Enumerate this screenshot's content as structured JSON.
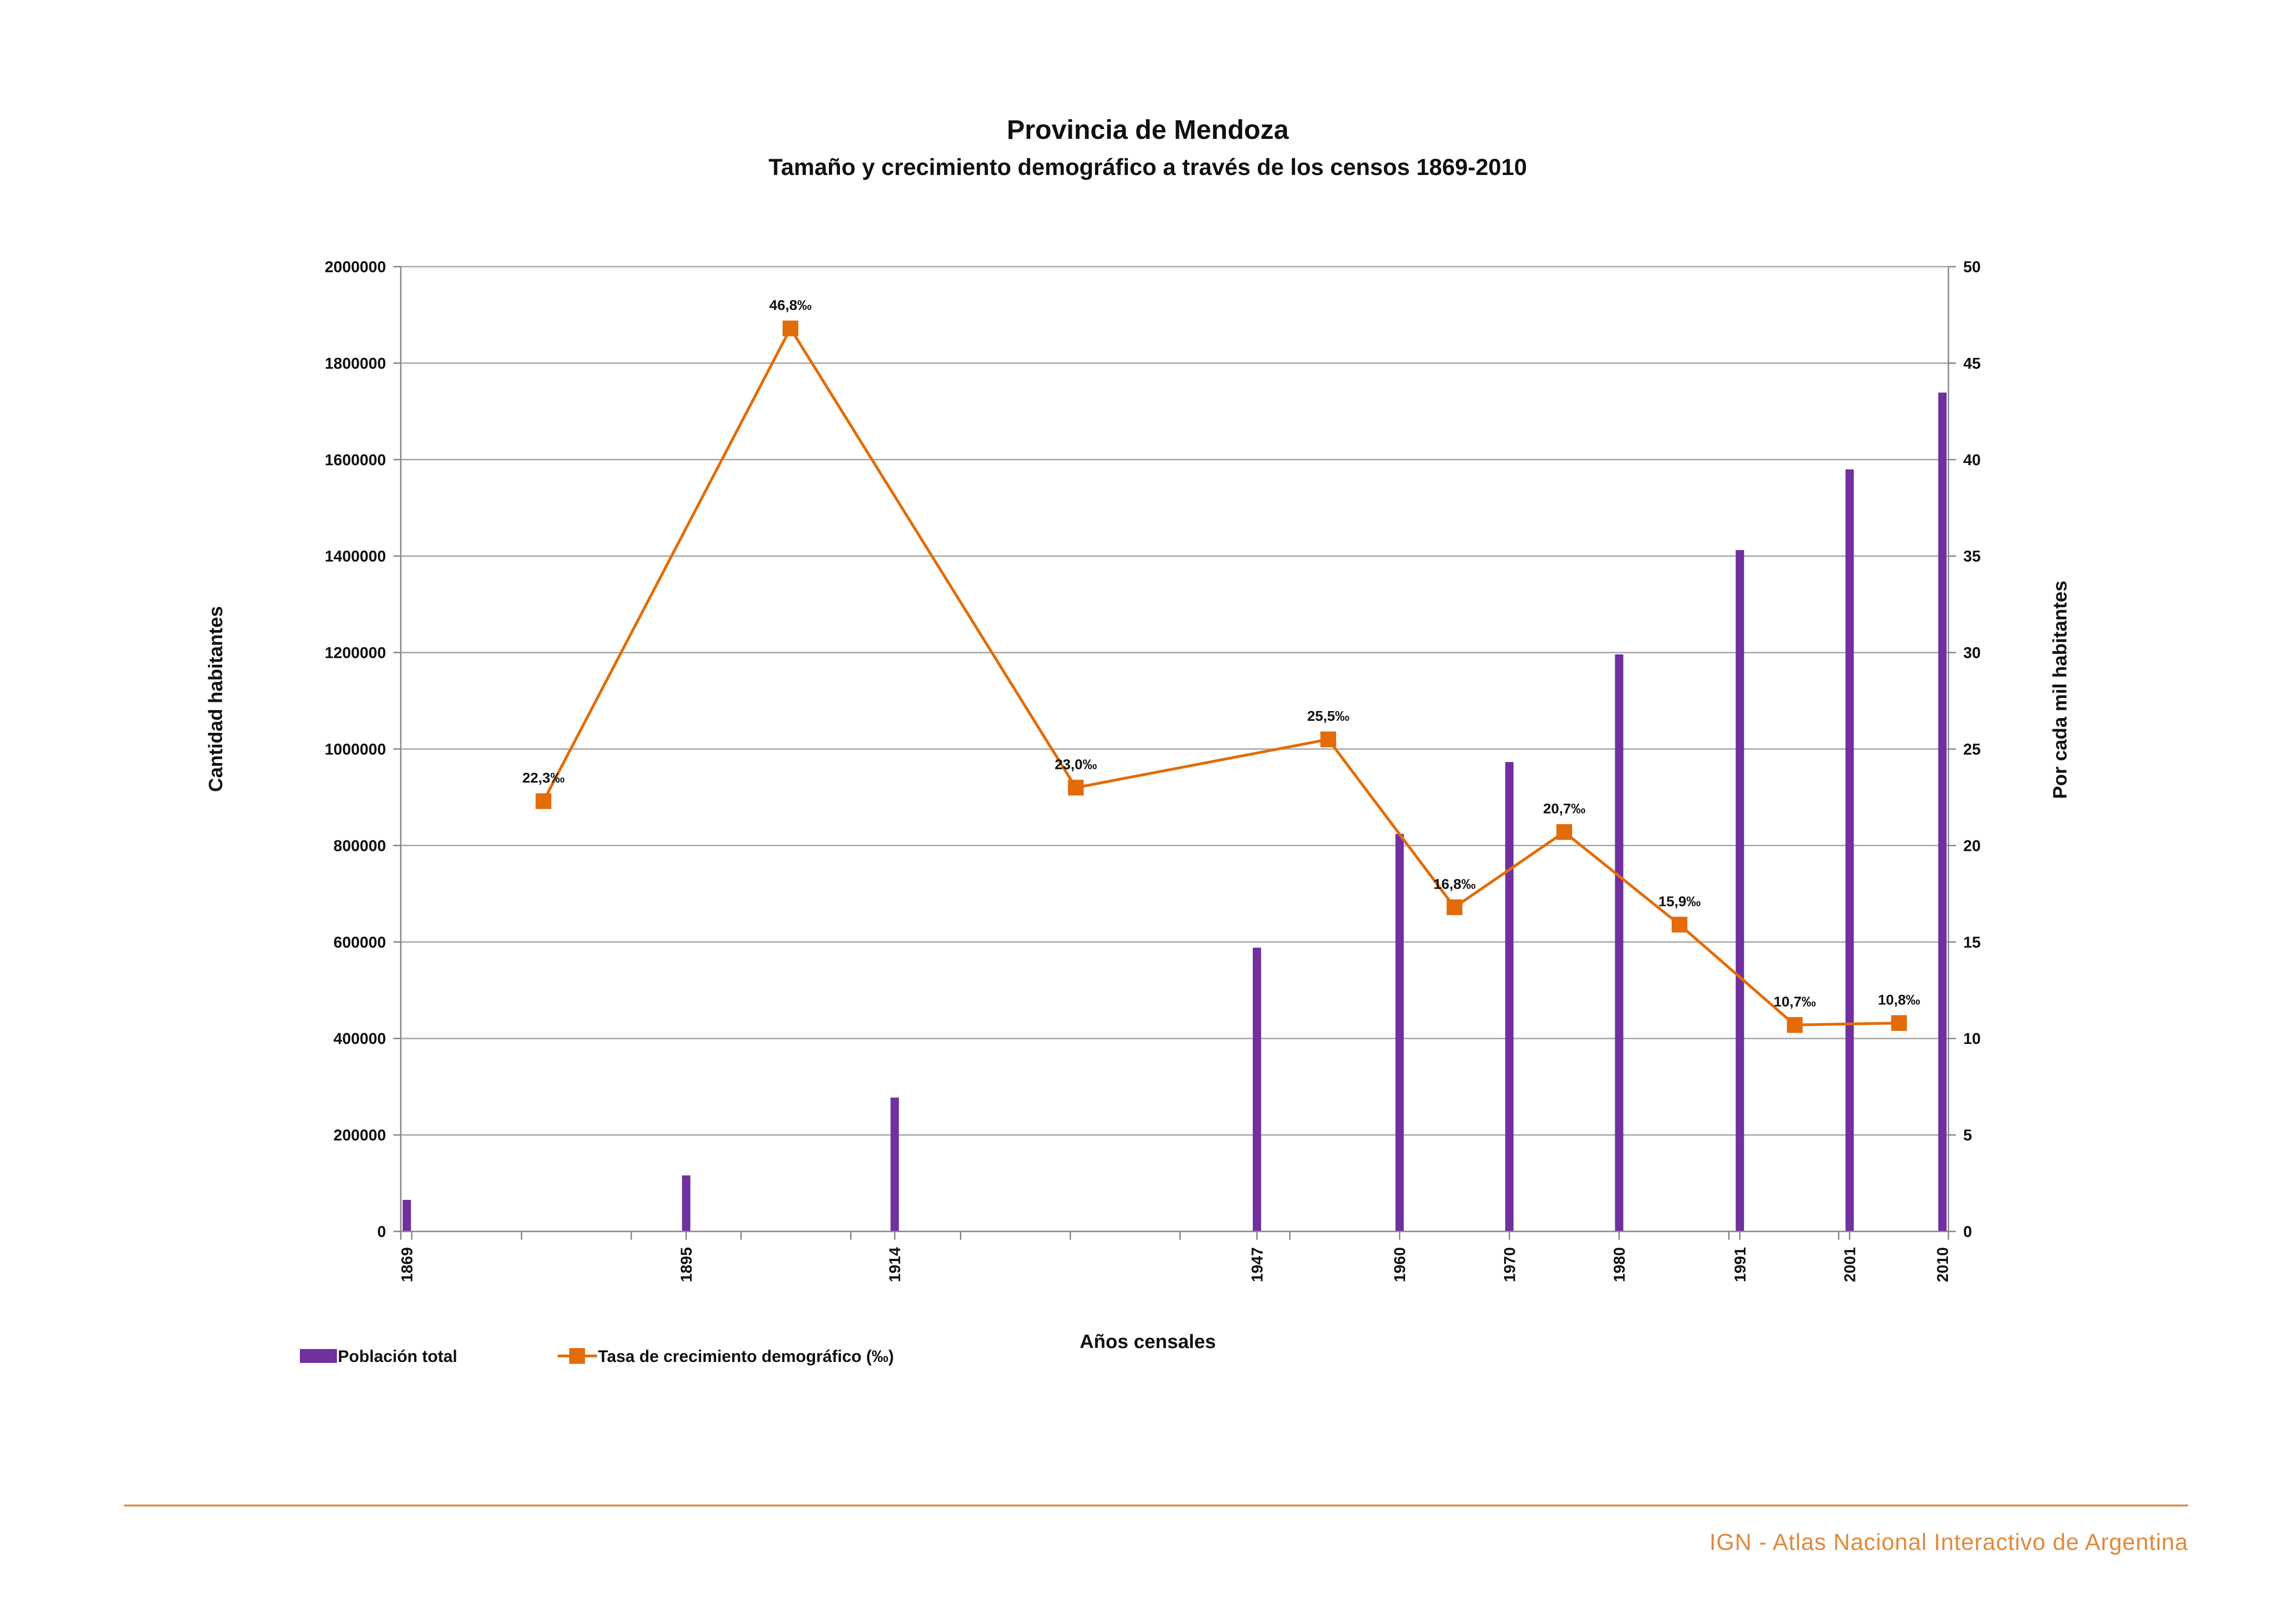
{
  "chart_data": {
    "type": "bar",
    "title": "Provincia de Mendoza",
    "subtitle": "Tamaño y crecimiento demográfico a través de los censos 1869-2010",
    "xlabel": "Años censales",
    "ylabel": "Cantidad habitantes",
    "y2label": "Por cada mil habitantes",
    "ylim": [
      0,
      2000000
    ],
    "y2lim": [
      0,
      50
    ],
    "yticks": [
      "0",
      "200000",
      "400000",
      "600000",
      "800000",
      "1000000",
      "1200000",
      "1400000",
      "1600000",
      "1800000",
      "2000000"
    ],
    "y2ticks": [
      "0",
      "5",
      "10",
      "15",
      "20",
      "25",
      "30",
      "35",
      "40",
      "45",
      "50"
    ],
    "xlim": [
      1869,
      2010
    ],
    "grid": true,
    "legend_position": "bottom-left",
    "bar_color": "#7030a0",
    "line_color": "#e36c09",
    "series": [
      {
        "name": "Población total",
        "kind": "bar",
        "x": [
          1869,
          1895,
          1914,
          1947,
          1960,
          1970,
          1980,
          1991,
          2001,
          2010
        ],
        "x_labels": [
          "1869",
          "1895",
          "1914",
          "1947",
          "1960",
          "1970",
          "1980",
          "1991",
          "2001",
          "2010"
        ],
        "values": [
          65413,
          116136,
          277535,
          588231,
          824036,
          973075,
          1196228,
          1412481,
          1579651,
          1738929
        ]
      },
      {
        "name": "Tasa de crecimiento demográfico (‰)",
        "kind": "line",
        "axis": "right",
        "x": [
          1882,
          1904.5,
          1930.5,
          1953.5,
          1965,
          1975,
          1985.5,
          1996,
          2005.5
        ],
        "values": [
          22.3,
          46.8,
          23.0,
          25.5,
          16.8,
          20.7,
          15.9,
          10.7,
          10.8
        ],
        "labels": [
          "22,3‰",
          "46,8‰",
          "23,0‰",
          "25,5‰",
          "16,8‰",
          "20,7‰",
          "15,9‰",
          "10,7‰",
          "10,8‰"
        ]
      }
    ]
  },
  "footer": {
    "credit": "IGN - Atlas Nacional Interactivo de Argentina",
    "rule_color": "#e08a3c"
  }
}
